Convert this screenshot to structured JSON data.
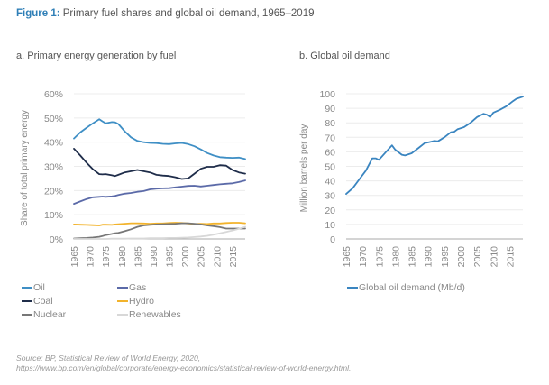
{
  "figure": {
    "label": "Figure 1:",
    "title": " Primary fuel shares and global oil demand, 1965–2019"
  },
  "source": {
    "line1": "Source: BP, Statistical Review of World Energy, 2020,",
    "line2": "https://www.bp.com/en/global/corporate/energy-economics/statistical-review-of-world-energy.html."
  },
  "chart_data": [
    {
      "type": "line",
      "title": "a. Primary energy generation by fuel",
      "xlabel": "",
      "ylabel": "Share of total primary energy",
      "ylim": [
        0,
        60
      ],
      "xlim": [
        1965,
        2019
      ],
      "yticks": [
        "0%",
        "10%",
        "20%",
        "30%",
        "40%",
        "50%",
        "60%"
      ],
      "yticks_values": [
        0,
        10,
        20,
        30,
        40,
        50,
        60
      ],
      "xticks": [
        "1965",
        "1970",
        "1975",
        "1980",
        "1985",
        "1990",
        "1995",
        "2000",
        "2005",
        "2010",
        "2015"
      ],
      "grid": true,
      "legend": "bottom",
      "x": [
        1965,
        1967,
        1969,
        1971,
        1973,
        1974,
        1975,
        1977,
        1978,
        1979,
        1981,
        1983,
        1985,
        1987,
        1989,
        1991,
        1993,
        1995,
        1997,
        1999,
        2001,
        2003,
        2005,
        2007,
        2009,
        2011,
        2013,
        2015,
        2017,
        2019
      ],
      "series": [
        {
          "name": "Oil",
          "color": "#3f8fc5",
          "values": [
            41.5,
            44.0,
            46.0,
            47.8,
            49.5,
            48.6,
            47.8,
            48.3,
            48.2,
            47.5,
            44.5,
            42.0,
            40.5,
            40.0,
            39.7,
            39.6,
            39.3,
            39.2,
            39.5,
            39.7,
            39.2,
            38.3,
            37.0,
            35.5,
            34.5,
            33.8,
            33.6,
            33.5,
            33.6,
            33.0
          ]
        },
        {
          "name": "Gas",
          "color": "#5b6aa8",
          "values": [
            14.5,
            15.5,
            16.5,
            17.2,
            17.4,
            17.5,
            17.4,
            17.6,
            17.8,
            18.2,
            18.7,
            19.0,
            19.5,
            19.8,
            20.5,
            20.8,
            20.9,
            21.0,
            21.3,
            21.6,
            21.9,
            22.0,
            21.7,
            22.0,
            22.3,
            22.6,
            22.8,
            23.0,
            23.5,
            24.2
          ]
        },
        {
          "name": "Coal",
          "color": "#1f2d4a",
          "values": [
            37.3,
            34.5,
            31.5,
            28.8,
            26.8,
            26.7,
            26.8,
            26.3,
            26.0,
            26.5,
            27.5,
            28.0,
            28.5,
            28.0,
            27.5,
            26.5,
            26.2,
            26.0,
            25.5,
            24.8,
            25.0,
            27.0,
            29.0,
            29.8,
            29.8,
            30.5,
            30.3,
            28.5,
            27.5,
            27.0
          ]
        },
        {
          "name": "Hydro",
          "color": "#f2b32c",
          "values": [
            6.0,
            5.9,
            5.8,
            5.7,
            5.6,
            5.9,
            5.9,
            5.8,
            6.0,
            6.1,
            6.3,
            6.5,
            6.5,
            6.4,
            6.3,
            6.4,
            6.4,
            6.6,
            6.7,
            6.6,
            6.4,
            6.2,
            6.3,
            6.2,
            6.4,
            6.4,
            6.6,
            6.7,
            6.7,
            6.5
          ]
        },
        {
          "name": "Nuclear",
          "color": "#777777",
          "values": [
            0.2,
            0.3,
            0.4,
            0.6,
            0.9,
            1.2,
            1.6,
            2.1,
            2.4,
            2.5,
            3.2,
            4.0,
            5.0,
            5.6,
            5.8,
            6.0,
            6.1,
            6.2,
            6.3,
            6.5,
            6.5,
            6.3,
            6.0,
            5.6,
            5.3,
            4.9,
            4.3,
            4.3,
            4.3,
            4.3
          ]
        },
        {
          "name": "Renewables",
          "color": "#d8d8d8",
          "values": [
            0.0,
            0.0,
            0.0,
            0.0,
            0.0,
            0.0,
            0.0,
            0.1,
            0.1,
            0.1,
            0.1,
            0.2,
            0.2,
            0.2,
            0.3,
            0.3,
            0.3,
            0.4,
            0.4,
            0.5,
            0.6,
            0.8,
            1.0,
            1.3,
            1.8,
            2.3,
            2.9,
            3.5,
            4.2,
            5.0
          ]
        }
      ]
    },
    {
      "type": "line",
      "title": "b. Global oil demand",
      "xlabel": "",
      "ylabel": "Million barrels per day",
      "ylim": [
        0,
        100
      ],
      "xlim": [
        1965,
        2019
      ],
      "yticks": [
        "0",
        "10",
        "20",
        "30",
        "40",
        "50",
        "60",
        "70",
        "80",
        "90",
        "100"
      ],
      "yticks_values": [
        0,
        10,
        20,
        30,
        40,
        50,
        60,
        70,
        80,
        90,
        100
      ],
      "xticks": [
        "1965",
        "1970",
        "1975",
        "1980",
        "1985",
        "1990",
        "1995",
        "2000",
        "2005",
        "2010",
        "2015"
      ],
      "grid": true,
      "legend": "bottom",
      "x": [
        1965,
        1967,
        1969,
        1971,
        1973,
        1974,
        1975,
        1977,
        1979,
        1980,
        1982,
        1983,
        1985,
        1987,
        1989,
        1991,
        1992,
        1993,
        1995,
        1997,
        1998,
        1999,
        2001,
        2003,
        2005,
        2007,
        2008,
        2009,
        2010,
        2012,
        2014,
        2016,
        2017,
        2019
      ],
      "series": [
        {
          "name": "Global oil demand (Mb/d)",
          "color": "#3a85c0",
          "values": [
            31.0,
            35.0,
            41.0,
            47.0,
            55.5,
            55.5,
            54.5,
            59.5,
            64.5,
            61.5,
            58.0,
            57.5,
            59.0,
            62.5,
            66.0,
            67.0,
            67.5,
            67.2,
            70.0,
            73.5,
            73.8,
            75.5,
            77.0,
            80.0,
            84.0,
            86.2,
            85.6,
            84.0,
            87.0,
            89.0,
            91.5,
            95.0,
            96.5,
            98.0
          ]
        }
      ]
    }
  ]
}
